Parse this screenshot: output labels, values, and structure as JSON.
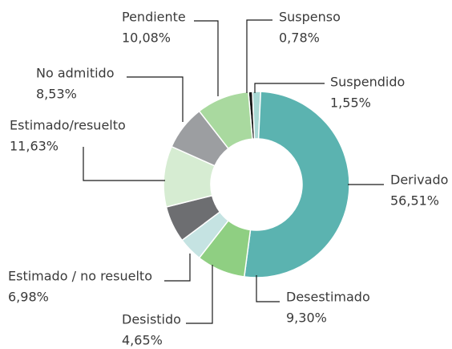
{
  "chart_data": {
    "type": "donut",
    "categories": [
      "Suspenso",
      "Suspendido",
      "Derivado",
      "Desestimado",
      "Desistido",
      "Estimado / no resuelto",
      "Estimado/resuelto",
      "No admitido",
      "Pendiente"
    ],
    "values": [
      0.78,
      1.55,
      56.51,
      9.3,
      4.65,
      6.98,
      11.63,
      8.53,
      10.08
    ],
    "value_labels": [
      "0,78%",
      "1,55%",
      "56,51%",
      "9,30%",
      "4,65%",
      "6,98%",
      "11,63%",
      "8,53%",
      "10,08%"
    ],
    "colors": [
      "#1a1a1a",
      "#a8d8d4",
      "#5bb3b0",
      "#8fcf82",
      "#c5e3e2",
      "#6d6e71",
      "#d6ecd2",
      "#9c9ea1",
      "#a9d99f"
    ]
  }
}
